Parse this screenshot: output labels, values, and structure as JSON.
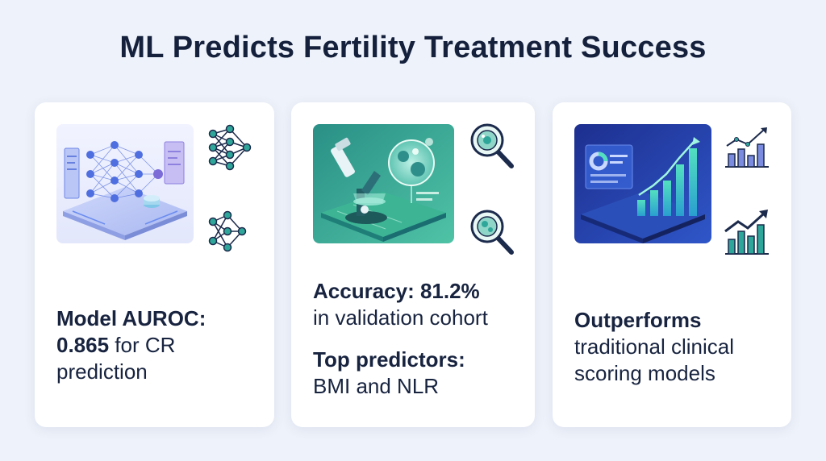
{
  "title": "ML Predicts Fertility Treatment Success",
  "cards": [
    {
      "hero_icon": "neural-network-platform-illustration",
      "side_icons": [
        "neural-network-icon",
        "neural-network-icon"
      ],
      "lines": [
        {
          "text": "Model AUROC:",
          "bold": true
        },
        {
          "text": "0.865",
          "bold": true,
          "suffix": " for CR"
        },
        {
          "text": "prediction",
          "bold": false
        }
      ]
    },
    {
      "hero_icon": "microscope-cell-illustration",
      "side_icons": [
        "magnifier-cell-icon",
        "magnifier-cell-icon"
      ],
      "block1": {
        "bold": "Accuracy: 81.2%",
        "normal": "in validation cohort"
      },
      "block2": {
        "bold": "Top predictors:",
        "normal": "BMI and NLR"
      }
    },
    {
      "hero_icon": "analytics-dashboard-illustration",
      "side_icons": [
        "bar-chart-trend-icon",
        "bar-chart-trend-icon"
      ],
      "lines": [
        {
          "text": "Outperforms",
          "bold": true
        },
        {
          "text": "traditional clinical",
          "bold": false
        },
        {
          "text": "scoring models",
          "bold": false
        }
      ]
    }
  ],
  "colors": {
    "background": "#eef2fa",
    "card": "#ffffff",
    "title": "#15213c",
    "navy": "#1c2a4c",
    "teal": "#2fa69a",
    "blue": "#3a66c8",
    "violet": "#7b6cd8"
  }
}
